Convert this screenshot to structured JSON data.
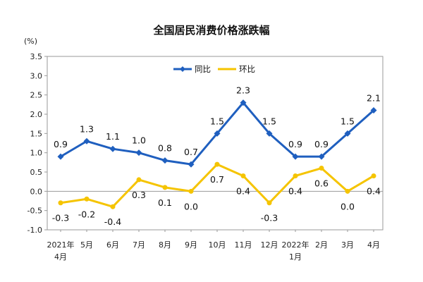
{
  "chart_data": {
    "type": "line",
    "title": "全国居民消费价格涨跌幅",
    "ylabel": "(%)",
    "ylim": [
      -1.0,
      3.5
    ],
    "yticks": [
      "3.5",
      "3.0",
      "2.5",
      "2.0",
      "1.5",
      "1.0",
      "0.5",
      "0.0",
      "-0.5",
      "-1.0"
    ],
    "ytick_values": [
      3.5,
      3.0,
      2.5,
      2.0,
      1.5,
      1.0,
      0.5,
      0.0,
      -0.5,
      -1.0
    ],
    "categories": [
      {
        "line1": "2021年",
        "line2": "4月"
      },
      {
        "line1": "5月",
        "line2": ""
      },
      {
        "line1": "6月",
        "line2": ""
      },
      {
        "line1": "7月",
        "line2": ""
      },
      {
        "line1": "8月",
        "line2": ""
      },
      {
        "line1": "9月",
        "line2": ""
      },
      {
        "line1": "10月",
        "line2": ""
      },
      {
        "line1": "11月",
        "line2": ""
      },
      {
        "line1": "12月",
        "line2": ""
      },
      {
        "line1": "2022年",
        "line2": "1月"
      },
      {
        "line1": "2月",
        "line2": ""
      },
      {
        "line1": "3月",
        "line2": ""
      },
      {
        "line1": "4月",
        "line2": ""
      }
    ],
    "series": [
      {
        "name": "同比",
        "color": "#1f5fbf",
        "marker": "diamond",
        "values": [
          0.9,
          1.3,
          1.1,
          1.0,
          0.8,
          0.7,
          1.5,
          2.3,
          1.5,
          0.9,
          0.9,
          1.5,
          2.1
        ],
        "labels": [
          "0.9",
          "1.3",
          "1.1",
          "1.0",
          "0.8",
          "0.7",
          "1.5",
          "2.3",
          "1.5",
          "0.9",
          "0.9",
          "1.5",
          "2.1"
        ]
      },
      {
        "name": "环比",
        "color": "#f5c400",
        "marker": "circle",
        "values": [
          -0.3,
          -0.2,
          -0.4,
          0.3,
          0.1,
          0.0,
          0.7,
          0.4,
          -0.3,
          0.4,
          0.6,
          0.0,
          0.4
        ],
        "labels": [
          "-0.3",
          "-0.2",
          "-0.4",
          "0.3",
          "0.1",
          "0.0",
          "0.7",
          "0.4",
          "-0.3",
          "0.4",
          "0.6",
          "0.0",
          "0.4"
        ]
      }
    ],
    "legend_position": "top-center",
    "grid": false
  }
}
